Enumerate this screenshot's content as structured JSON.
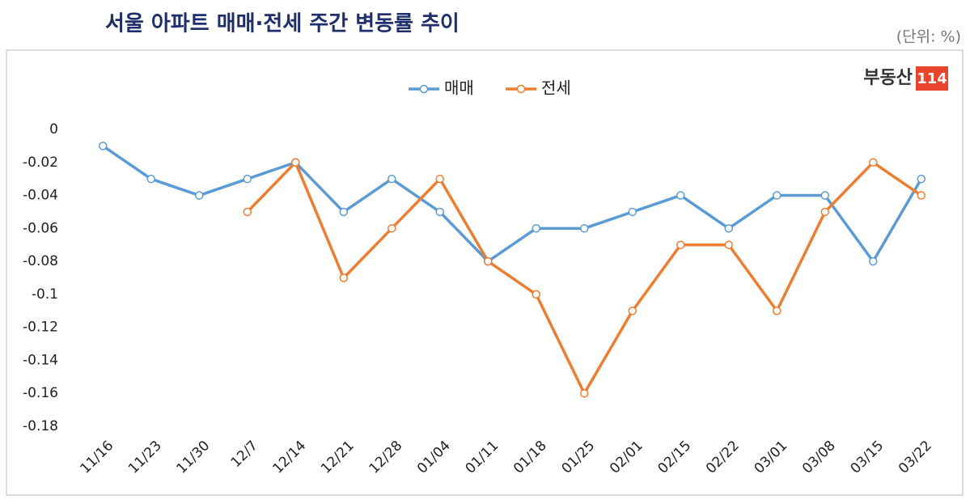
{
  "chart_data": {
    "type": "line",
    "title": "서울 아파트 매매·전세 주간 변동률 추이",
    "unit_note": "(단위: %)",
    "brand": {
      "name": "부동산",
      "number": "114"
    },
    "categories": [
      "11/16",
      "11/23",
      "11/30",
      "12/7",
      "12/14",
      "12/21",
      "12/28",
      "01/04",
      "01/11",
      "01/18",
      "01/25",
      "02/01",
      "02/15",
      "02/22",
      "03/01",
      "03/08",
      "03/15",
      "03/22"
    ],
    "series": [
      {
        "name": "매매",
        "color": "#5b9bd5",
        "values": [
          -0.01,
          -0.03,
          -0.04,
          -0.03,
          -0.02,
          -0.05,
          -0.03,
          -0.05,
          -0.08,
          -0.06,
          -0.06,
          -0.05,
          -0.04,
          -0.06,
          -0.04,
          -0.04,
          -0.08,
          -0.03
        ]
      },
      {
        "name": "전세",
        "color": "#ed7d31",
        "values": [
          null,
          null,
          null,
          -0.05,
          -0.02,
          -0.09,
          -0.06,
          -0.03,
          -0.08,
          -0.1,
          -0.16,
          -0.11,
          -0.07,
          -0.07,
          -0.11,
          -0.05,
          -0.02,
          -0.04
        ]
      }
    ],
    "ylim": [
      -0.18,
      0
    ],
    "yticks": [
      0,
      -0.02,
      -0.04,
      -0.06,
      -0.08,
      -0.1,
      -0.12,
      -0.14,
      -0.16,
      -0.18
    ],
    "legend": "top"
  }
}
